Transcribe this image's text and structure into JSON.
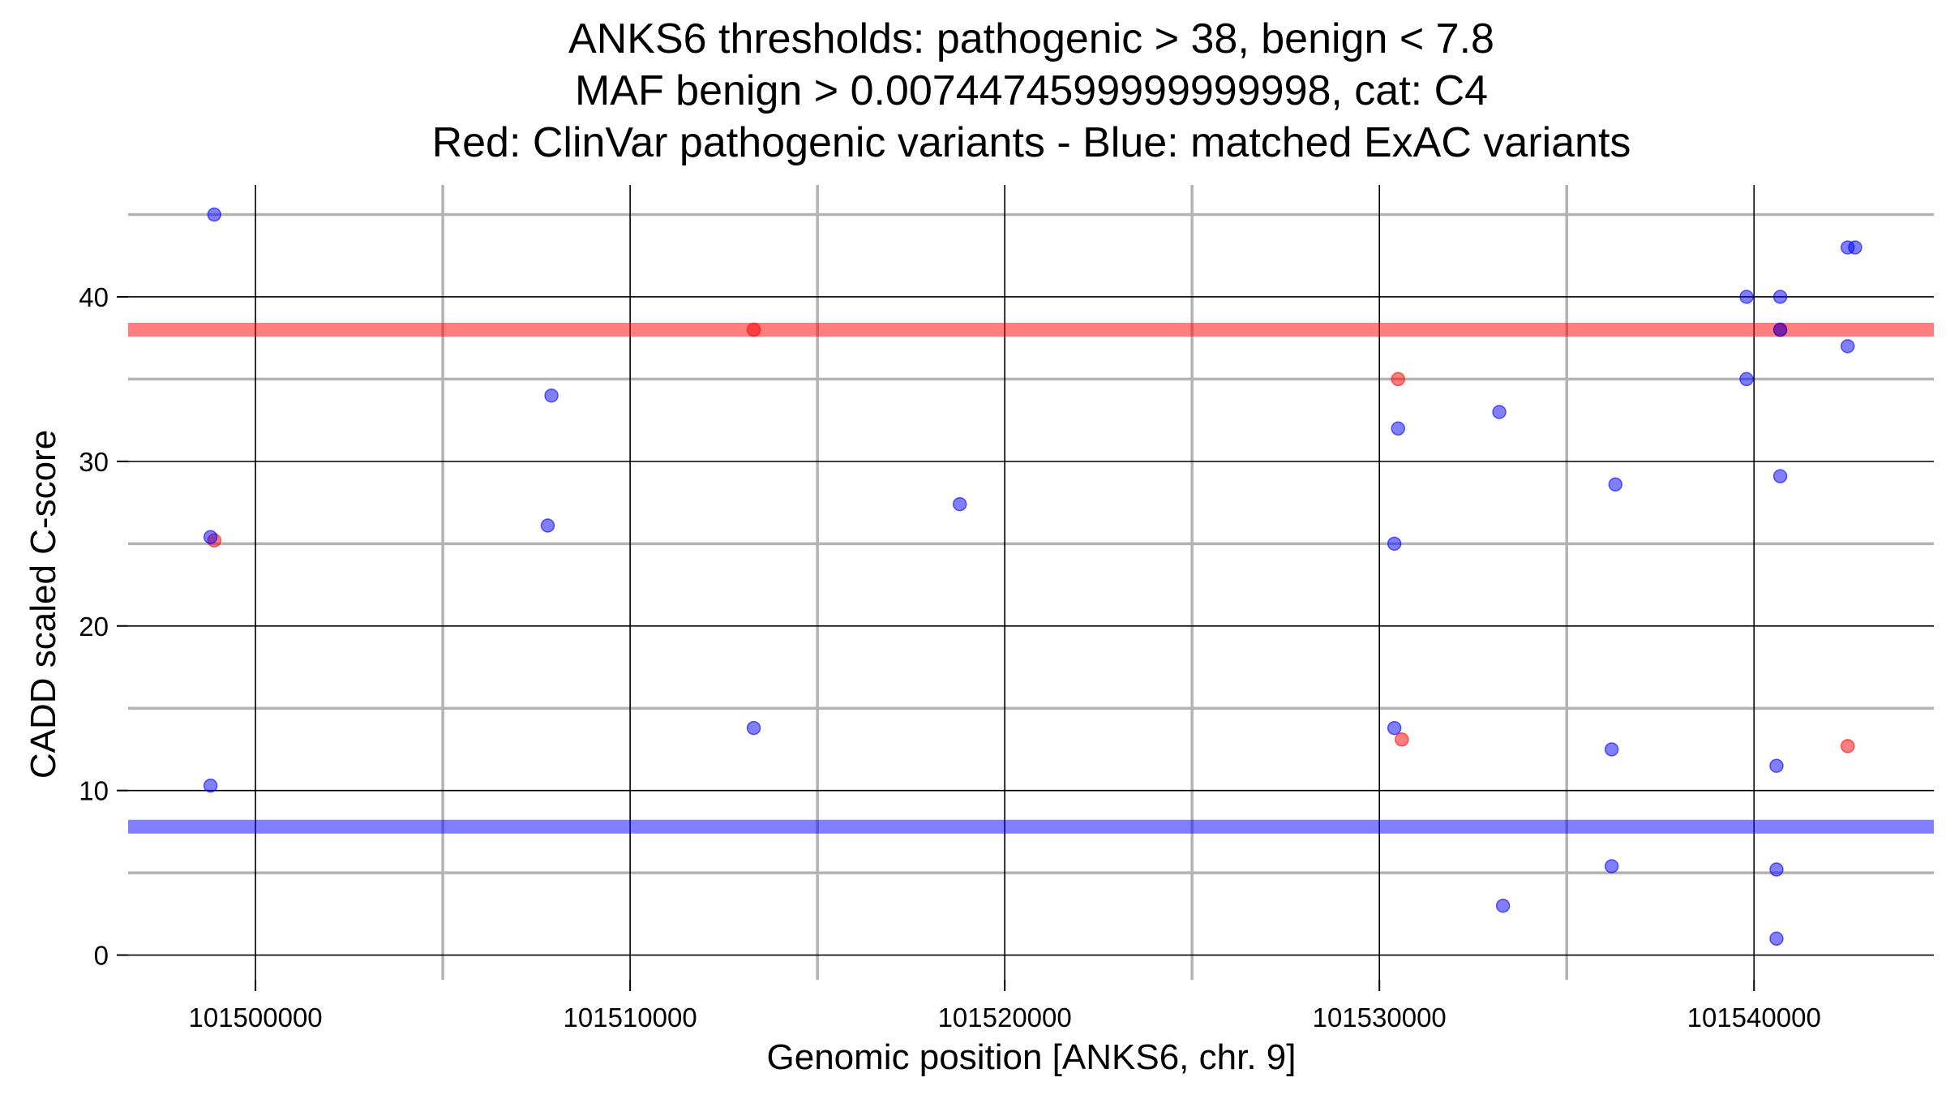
{
  "chart_data": {
    "type": "scatter",
    "title_lines": [
      "ANKS6 thresholds: pathogenic > 38, benign < 7.8",
      "MAF benign > 0.0074474599999999998, cat: C4",
      "Red: ClinVar pathogenic variants - Blue: matched ExAC variants"
    ],
    "xlabel": "Genomic position [ANKS6, chr. 9]",
    "ylabel": "CADD scaled C-score",
    "xlim": [
      101496600,
      101544800
    ],
    "ylim": [
      -1.5,
      46.8
    ],
    "x_ticks": [
      101500000,
      101510000,
      101520000,
      101530000,
      101540000
    ],
    "x_minor_ticks": [
      101505000,
      101515000,
      101525000,
      101535000
    ],
    "y_ticks": [
      0,
      10,
      20,
      30,
      40
    ],
    "y_minor_ticks": [
      5,
      15,
      25,
      35,
      45
    ],
    "grid": true,
    "thresholds": [
      {
        "value": 38,
        "color": "#ff0000"
      },
      {
        "value": 7.8,
        "color": "#0000ff"
      }
    ],
    "series": [
      {
        "color": "#ff0000",
        "points": [
          {
            "x": 101513300,
            "y": 38.0
          },
          {
            "x": 101498900,
            "y": 25.2
          },
          {
            "x": 101530500,
            "y": 35.0
          },
          {
            "x": 101530600,
            "y": 13.1
          },
          {
            "x": 101540700,
            "y": 38.0
          },
          {
            "x": 101542500,
            "y": 12.7
          }
        ]
      },
      {
        "color": "#0000ff",
        "points": [
          {
            "x": 101498900,
            "y": 45.0
          },
          {
            "x": 101498800,
            "y": 25.4
          },
          {
            "x": 101498800,
            "y": 10.3
          },
          {
            "x": 101507900,
            "y": 34.0
          },
          {
            "x": 101507800,
            "y": 26.1
          },
          {
            "x": 101513300,
            "y": 13.8
          },
          {
            "x": 101518800,
            "y": 27.4
          },
          {
            "x": 101530500,
            "y": 32.0
          },
          {
            "x": 101530400,
            "y": 25.0
          },
          {
            "x": 101530400,
            "y": 13.8
          },
          {
            "x": 101533200,
            "y": 33.0
          },
          {
            "x": 101533300,
            "y": 3.0
          },
          {
            "x": 101536300,
            "y": 28.6
          },
          {
            "x": 101536200,
            "y": 12.5
          },
          {
            "x": 101536200,
            "y": 5.4
          },
          {
            "x": 101539800,
            "y": 40.0
          },
          {
            "x": 101539800,
            "y": 35.0
          },
          {
            "x": 101540700,
            "y": 40.0
          },
          {
            "x": 101540700,
            "y": 38.0
          },
          {
            "x": 101540700,
            "y": 29.1
          },
          {
            "x": 101540600,
            "y": 11.5
          },
          {
            "x": 101540600,
            "y": 5.2
          },
          {
            "x": 101540600,
            "y": 1.0
          },
          {
            "x": 101542500,
            "y": 43.0
          },
          {
            "x": 101542700,
            "y": 43.0
          },
          {
            "x": 101542500,
            "y": 37.0
          }
        ]
      }
    ]
  }
}
